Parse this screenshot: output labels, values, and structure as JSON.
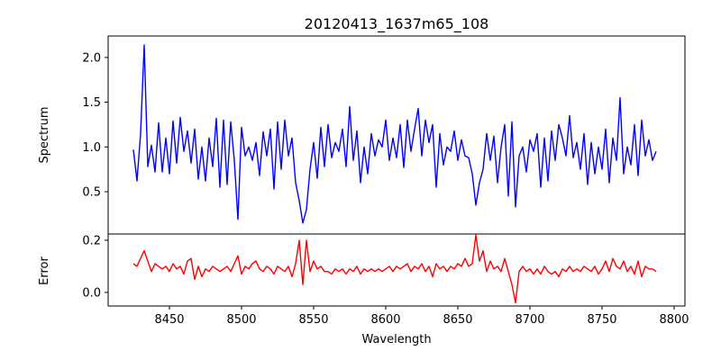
{
  "chart_data": [
    {
      "type": "line",
      "title": "20120413_1637m65_108",
      "xlabel": "",
      "ylabel": "Spectrum",
      "xlim": [
        8407.5,
        8807.5
      ],
      "ylim": [
        0.027,
        2.24
      ],
      "yticks": [
        "0.5",
        "1.0",
        "1.5",
        "2.0"
      ],
      "ytick_values": [
        0.5,
        1.0,
        1.5,
        2.0
      ],
      "grid": false,
      "series": [
        {
          "name": "Spectrum",
          "color": "#0000ff",
          "x_start": 8425,
          "x_step": 2.5,
          "values": [
            0.97,
            0.62,
            1.15,
            2.14,
            0.78,
            1.02,
            0.72,
            1.27,
            0.72,
            1.1,
            0.7,
            1.29,
            0.82,
            1.33,
            0.95,
            1.18,
            0.82,
            1.2,
            0.64,
            1.0,
            0.62,
            1.1,
            0.78,
            1.32,
            0.55,
            1.3,
            0.58,
            1.28,
            0.85,
            0.19,
            1.22,
            0.9,
            1.0,
            0.85,
            1.05,
            0.68,
            1.17,
            0.9,
            1.2,
            0.53,
            1.28,
            0.75,
            1.3,
            0.9,
            1.1,
            0.6,
            0.4,
            0.15,
            0.3,
            0.75,
            1.05,
            0.65,
            1.22,
            0.78,
            1.25,
            0.88,
            1.05,
            0.95,
            1.2,
            0.78,
            1.45,
            0.85,
            1.18,
            0.6,
            1.0,
            0.7,
            1.15,
            0.9,
            1.08,
            1.0,
            1.3,
            0.85,
            1.1,
            0.88,
            1.25,
            0.77,
            1.3,
            0.95,
            1.2,
            1.43,
            0.9,
            1.3,
            1.05,
            1.25,
            0.55,
            1.15,
            0.8,
            1.0,
            0.95,
            1.18,
            0.85,
            1.08,
            0.9,
            0.88,
            0.7,
            0.35,
            0.6,
            0.75,
            1.15,
            0.85,
            1.12,
            0.6,
            1.0,
            1.25,
            0.45,
            1.28,
            0.33,
            0.9,
            1.0,
            0.72,
            1.08,
            0.95,
            1.15,
            0.55,
            1.1,
            0.62,
            1.18,
            0.85,
            1.25,
            1.1,
            0.9,
            1.35,
            0.88,
            1.05,
            0.75,
            1.15,
            0.58,
            1.05,
            0.7,
            1.0,
            0.75,
            1.2,
            0.6,
            1.1,
            0.85,
            1.55,
            0.7,
            1.0,
            0.8,
            1.25,
            0.68,
            1.3,
            0.9,
            1.08,
            0.85,
            0.95
          ]
        }
      ]
    },
    {
      "type": "line",
      "xlabel": "Wavelength",
      "ylabel": "Error",
      "xlim": [
        8407.5,
        8807.5
      ],
      "ylim": [
        -0.052,
        0.224
      ],
      "xticks": [
        "8450",
        "8500",
        "8550",
        "8600",
        "8650",
        "8700",
        "8750",
        "8800"
      ],
      "xtick_values": [
        8450,
        8500,
        8550,
        8600,
        8650,
        8700,
        8750,
        8800
      ],
      "yticks": [
        "0.0",
        "0.2"
      ],
      "ytick_values": [
        0.0,
        0.2
      ],
      "grid": false,
      "series": [
        {
          "name": "Error",
          "color": "#ff0000",
          "x_start": 8425,
          "x_step": 2.5,
          "values": [
            0.11,
            0.1,
            0.13,
            0.16,
            0.12,
            0.08,
            0.11,
            0.1,
            0.09,
            0.1,
            0.08,
            0.11,
            0.09,
            0.1,
            0.07,
            0.12,
            0.13,
            0.05,
            0.1,
            0.06,
            0.09,
            0.08,
            0.1,
            0.09,
            0.08,
            0.09,
            0.1,
            0.08,
            0.11,
            0.14,
            0.07,
            0.1,
            0.09,
            0.11,
            0.12,
            0.09,
            0.08,
            0.1,
            0.09,
            0.07,
            0.1,
            0.09,
            0.08,
            0.1,
            0.06,
            0.11,
            0.2,
            0.03,
            0.2,
            0.08,
            0.12,
            0.09,
            0.1,
            0.08,
            0.08,
            0.07,
            0.09,
            0.08,
            0.09,
            0.07,
            0.09,
            0.08,
            0.1,
            0.07,
            0.09,
            0.08,
            0.09,
            0.08,
            0.09,
            0.08,
            0.09,
            0.1,
            0.08,
            0.1,
            0.09,
            0.1,
            0.11,
            0.08,
            0.1,
            0.09,
            0.11,
            0.08,
            0.1,
            0.06,
            0.11,
            0.09,
            0.1,
            0.08,
            0.1,
            0.09,
            0.11,
            0.1,
            0.13,
            0.1,
            0.11,
            0.22,
            0.12,
            0.16,
            0.08,
            0.12,
            0.09,
            0.1,
            0.08,
            0.13,
            0.08,
            0.03,
            -0.04,
            0.08,
            0.1,
            0.08,
            0.09,
            0.07,
            0.09,
            0.07,
            0.1,
            0.08,
            0.07,
            0.08,
            0.06,
            0.09,
            0.08,
            0.1,
            0.08,
            0.09,
            0.08,
            0.1,
            0.09,
            0.08,
            0.1,
            0.07,
            0.09,
            0.12,
            0.08,
            0.13,
            0.1,
            0.09,
            0.12,
            0.08,
            0.1,
            0.07,
            0.12,
            0.06,
            0.1,
            0.09,
            0.09,
            0.08
          ]
        }
      ]
    }
  ]
}
